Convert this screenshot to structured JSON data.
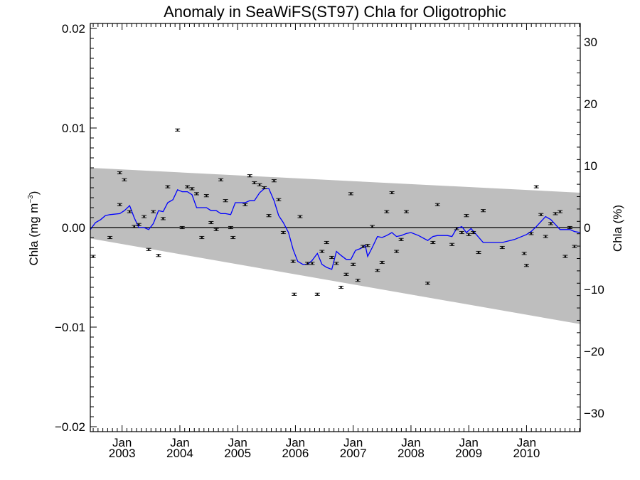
{
  "chart_data": {
    "type": "scatter",
    "title": "Anomaly in SeaWiFS(ST97) Chla for Oligotrophic",
    "ylabel_left": {
      "text": "Chla (mg m",
      "sup": "−3",
      "close": ")"
    },
    "ylabel_right": "Chla (%)",
    "x_range": [
      2002.45,
      2010.93
    ],
    "ylim_left": [
      -0.0205,
      0.0205
    ],
    "ylim_right": [
      -33,
      33
    ],
    "x_ticks": [
      {
        "x": 2003.0,
        "label": "Jan",
        "year": "2003"
      },
      {
        "x": 2004.0,
        "label": "Jan",
        "year": "2004"
      },
      {
        "x": 2005.0,
        "label": "Jan",
        "year": "2005"
      },
      {
        "x": 2006.0,
        "label": "Jan",
        "year": "2006"
      },
      {
        "x": 2007.0,
        "label": "Jan",
        "year": "2007"
      },
      {
        "x": 2008.0,
        "label": "Jan",
        "year": "2008"
      },
      {
        "x": 2009.0,
        "label": "Jan",
        "year": "2009"
      },
      {
        "x": 2010.0,
        "label": "Jan",
        "year": "2010"
      }
    ],
    "y_ticks_left": [
      {
        "v": 0.02,
        "label": "0.02"
      },
      {
        "v": 0.01,
        "label": "0.01"
      },
      {
        "v": 0.0,
        "label": "0.00"
      },
      {
        "v": -0.01,
        "label": "−0.01"
      },
      {
        "v": -0.02,
        "label": "−0.02"
      }
    ],
    "y_ticks_right": [
      {
        "v": 30,
        "label": "30"
      },
      {
        "v": 20,
        "label": "20"
      },
      {
        "v": 10,
        "label": "10"
      },
      {
        "v": 0,
        "label": "0"
      },
      {
        "v": -10,
        "label": "−10"
      },
      {
        "v": -20,
        "label": "−20"
      },
      {
        "v": -30,
        "label": "−30"
      }
    ],
    "shaded_band": {
      "color": "#bebebe",
      "upper": [
        [
          2002.45,
          0.006
        ],
        [
          2010.93,
          0.0035
        ]
      ],
      "lower": [
        [
          2002.45,
          -0.0011
        ],
        [
          2010.93,
          -0.0097
        ]
      ]
    },
    "reference_line": {
      "y": 0.0,
      "color": "#000000"
    },
    "series": [
      {
        "kind": "points",
        "color": "#000000",
        "points": [
          [
            2002.5,
            -0.0029
          ],
          [
            2002.79,
            -0.001
          ],
          [
            2002.96,
            0.0055
          ],
          [
            2003.04,
            0.0048
          ],
          [
            2002.96,
            0.0023
          ],
          [
            2003.13,
            0.0016
          ],
          [
            2003.21,
            0.0001
          ],
          [
            2003.29,
            0.0003
          ],
          [
            2003.38,
            0.0011
          ],
          [
            2003.46,
            -0.0022
          ],
          [
            2003.54,
            0.0016
          ],
          [
            2003.63,
            -0.0028
          ],
          [
            2003.71,
            0.0009
          ],
          [
            2003.79,
            0.0041
          ],
          [
            2003.96,
            0.0098
          ],
          [
            2004.04,
            0.0
          ],
          [
            2004.13,
            0.0041
          ],
          [
            2004.21,
            0.0039
          ],
          [
            2004.29,
            0.0034
          ],
          [
            2004.38,
            -0.001
          ],
          [
            2004.46,
            0.0032
          ],
          [
            2004.54,
            0.0005
          ],
          [
            2004.63,
            -0.0002
          ],
          [
            2004.71,
            0.0048
          ],
          [
            2004.79,
            0.0027
          ],
          [
            2004.88,
            0.0
          ],
          [
            2004.92,
            -0.001
          ],
          [
            2005.13,
            0.0023
          ],
          [
            2005.21,
            0.0052
          ],
          [
            2005.29,
            0.0045
          ],
          [
            2005.38,
            0.0043
          ],
          [
            2005.46,
            0.004
          ],
          [
            2005.54,
            0.0012
          ],
          [
            2005.63,
            0.0047
          ],
          [
            2005.71,
            0.0028
          ],
          [
            2005.79,
            -0.0005
          ],
          [
            2005.96,
            -0.0034
          ],
          [
            2005.98,
            -0.0067
          ],
          [
            2006.08,
            0.0011
          ],
          [
            2006.21,
            -0.0036
          ],
          [
            2006.29,
            -0.0036
          ],
          [
            2006.38,
            -0.0067
          ],
          [
            2006.46,
            -0.0024
          ],
          [
            2006.54,
            -0.0015
          ],
          [
            2006.63,
            -0.003
          ],
          [
            2006.71,
            -0.0036
          ],
          [
            2006.79,
            -0.006
          ],
          [
            2006.88,
            -0.0047
          ],
          [
            2006.96,
            0.0034
          ],
          [
            2007.0,
            -0.0037
          ],
          [
            2007.08,
            -0.0053
          ],
          [
            2007.17,
            -0.0019
          ],
          [
            2007.25,
            -0.0018
          ],
          [
            2007.33,
            0.0001
          ],
          [
            2007.42,
            -0.0043
          ],
          [
            2007.5,
            -0.0035
          ],
          [
            2007.58,
            0.0016
          ],
          [
            2007.67,
            0.0035
          ],
          [
            2007.75,
            -0.0024
          ],
          [
            2007.83,
            -0.0012
          ],
          [
            2007.92,
            0.0016
          ],
          [
            2008.29,
            -0.0056
          ],
          [
            2008.38,
            -0.0015
          ],
          [
            2008.46,
            0.0023
          ],
          [
            2008.71,
            -0.0017
          ],
          [
            2008.79,
            -0.0001
          ],
          [
            2008.88,
            -0.0005
          ],
          [
            2008.96,
            0.0012
          ],
          [
            2009.0,
            -0.0007
          ],
          [
            2009.08,
            -0.0005
          ],
          [
            2009.17,
            -0.0025
          ],
          [
            2009.25,
            0.0017
          ],
          [
            2009.58,
            -0.002
          ],
          [
            2009.96,
            -0.0026
          ],
          [
            2010.0,
            -0.0038
          ],
          [
            2010.08,
            -0.0006
          ],
          [
            2010.17,
            0.0041
          ],
          [
            2010.25,
            0.0013
          ],
          [
            2010.33,
            -0.0009
          ],
          [
            2010.42,
            0.0004
          ],
          [
            2010.5,
            0.0014
          ],
          [
            2010.58,
            0.0016
          ],
          [
            2010.67,
            -0.0029
          ],
          [
            2010.75,
            0.0
          ],
          [
            2010.83,
            -0.0019
          ]
        ]
      },
      {
        "kind": "line",
        "color": "#0000ff",
        "points": [
          [
            2002.45,
            -0.0002
          ],
          [
            2002.54,
            0.0005
          ],
          [
            2002.63,
            0.0008
          ],
          [
            2002.71,
            0.0012
          ],
          [
            2002.79,
            0.0013
          ],
          [
            2002.96,
            0.0014
          ],
          [
            2003.04,
            0.0017
          ],
          [
            2003.13,
            0.0022
          ],
          [
            2003.21,
            0.001
          ],
          [
            2003.29,
            0.0
          ],
          [
            2003.38,
            0.0
          ],
          [
            2003.46,
            -0.0002
          ],
          [
            2003.54,
            0.0004
          ],
          [
            2003.63,
            0.0017
          ],
          [
            2003.71,
            0.0016
          ],
          [
            2003.79,
            0.0025
          ],
          [
            2003.88,
            0.0028
          ],
          [
            2003.96,
            0.0038
          ],
          [
            2004.04,
            0.0036
          ],
          [
            2004.13,
            0.0036
          ],
          [
            2004.21,
            0.0033
          ],
          [
            2004.29,
            0.002
          ],
          [
            2004.38,
            0.002
          ],
          [
            2004.46,
            0.002
          ],
          [
            2004.54,
            0.0017
          ],
          [
            2004.63,
            0.0017
          ],
          [
            2004.71,
            0.0014
          ],
          [
            2004.79,
            0.0014
          ],
          [
            2004.88,
            0.0013
          ],
          [
            2004.96,
            0.0025
          ],
          [
            2005.04,
            0.0025
          ],
          [
            2005.13,
            0.0025
          ],
          [
            2005.21,
            0.0027
          ],
          [
            2005.29,
            0.0027
          ],
          [
            2005.38,
            0.0035
          ],
          [
            2005.46,
            0.0039
          ],
          [
            2005.54,
            0.0039
          ],
          [
            2005.63,
            0.0027
          ],
          [
            2005.71,
            0.0012
          ],
          [
            2005.79,
            0.0005
          ],
          [
            2005.88,
            -0.0005
          ],
          [
            2005.96,
            -0.0022
          ],
          [
            2006.04,
            -0.0034
          ],
          [
            2006.13,
            -0.0037
          ],
          [
            2006.21,
            -0.0037
          ],
          [
            2006.29,
            -0.0033
          ],
          [
            2006.38,
            -0.0026
          ],
          [
            2006.46,
            -0.0037
          ],
          [
            2006.54,
            -0.004
          ],
          [
            2006.63,
            -0.0042
          ],
          [
            2006.71,
            -0.0024
          ],
          [
            2006.79,
            -0.0028
          ],
          [
            2006.88,
            -0.0032
          ],
          [
            2006.96,
            -0.0032
          ],
          [
            2007.04,
            -0.0023
          ],
          [
            2007.13,
            -0.0021
          ],
          [
            2007.21,
            -0.0018
          ],
          [
            2007.25,
            -0.0029
          ],
          [
            2007.33,
            -0.002
          ],
          [
            2007.42,
            -0.0009
          ],
          [
            2007.5,
            -0.001
          ],
          [
            2007.58,
            -0.0008
          ],
          [
            2007.67,
            -0.0005
          ],
          [
            2007.75,
            -0.0009
          ],
          [
            2007.83,
            -0.0008
          ],
          [
            2007.92,
            -0.0006
          ],
          [
            2008.0,
            -0.0005
          ],
          [
            2008.13,
            -0.0008
          ],
          [
            2008.29,
            -0.0013
          ],
          [
            2008.38,
            -0.0009
          ],
          [
            2008.46,
            -0.0008
          ],
          [
            2008.54,
            -0.0008
          ],
          [
            2008.63,
            -0.0008
          ],
          [
            2008.71,
            -0.0009
          ],
          [
            2008.79,
            -0.0001
          ],
          [
            2008.88,
            0.0001
          ],
          [
            2008.96,
            -0.0005
          ],
          [
            2009.04,
            -0.0001
          ],
          [
            2009.13,
            -0.0007
          ],
          [
            2009.25,
            -0.0015
          ],
          [
            2009.42,
            -0.0015
          ],
          [
            2009.58,
            -0.0015
          ],
          [
            2009.79,
            -0.0012
          ],
          [
            2010.0,
            -0.0007
          ],
          [
            2010.08,
            -0.0004
          ],
          [
            2010.17,
            0.0001
          ],
          [
            2010.25,
            0.0006
          ],
          [
            2010.33,
            0.0011
          ],
          [
            2010.42,
            0.0008
          ],
          [
            2010.5,
            0.0003
          ],
          [
            2010.58,
            -0.0002
          ],
          [
            2010.67,
            -0.0002
          ],
          [
            2010.75,
            -0.0002
          ],
          [
            2010.83,
            -0.0004
          ],
          [
            2010.93,
            -0.0005
          ]
        ]
      }
    ]
  }
}
